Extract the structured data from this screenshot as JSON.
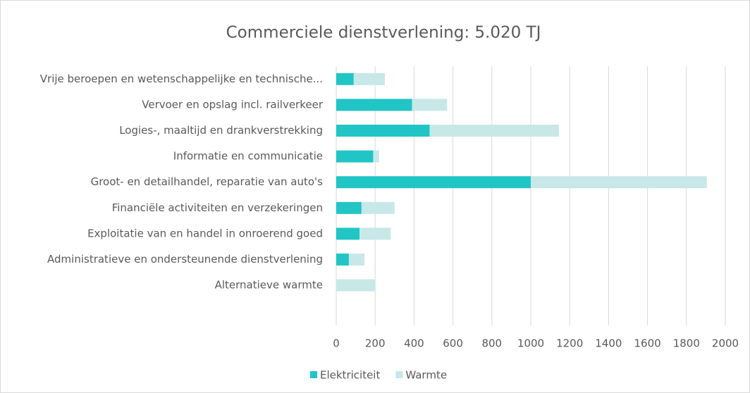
{
  "chart_data": {
    "type": "stacked-barh",
    "title": "Commerciele dienstverlening: 5.020 TJ",
    "categories": [
      "Vrije beroepen en wetenschappelijke en technische...",
      "Vervoer en opslag incl. railverkeer",
      "Logies-, maaltijd en drankverstrekking",
      "Informatie en communicatie",
      "Groot- en detailhandel, reparatie van auto's",
      "Financiële activiteiten en verzekeringen",
      "Exploitatie van en handel in onroerend goed",
      "Administratieve en ondersteunende dienstverlening",
      "Alternatieve warmte"
    ],
    "series": [
      {
        "name": "Elektriciteit",
        "color": "#21c5c5",
        "values": [
          90,
          390,
          480,
          190,
          1000,
          130,
          120,
          65,
          0
        ]
      },
      {
        "name": "Warmte",
        "color": "#c8e8e8",
        "values": [
          160,
          180,
          665,
          30,
          905,
          170,
          160,
          80,
          200
        ]
      }
    ],
    "xlim": [
      0,
      2000
    ],
    "xticks": [
      0,
      200,
      400,
      600,
      800,
      1000,
      1200,
      1400,
      1600,
      1800,
      2000
    ],
    "grid": true,
    "legend": "bottom"
  }
}
